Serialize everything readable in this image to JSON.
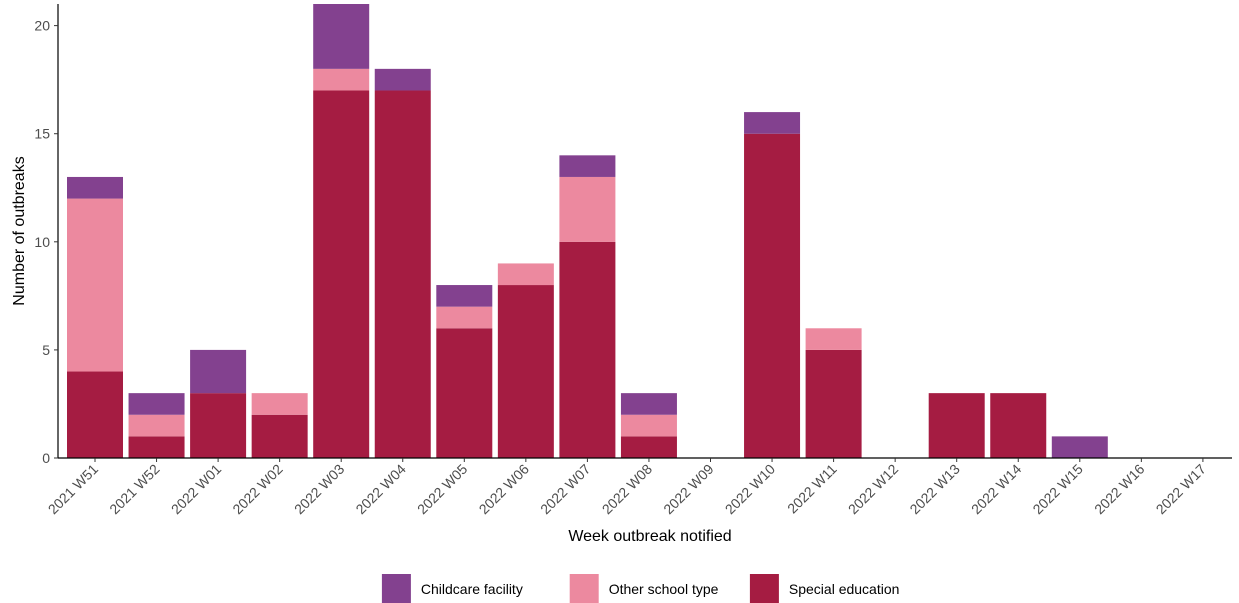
{
  "chart_data": {
    "type": "bar",
    "stacked": true,
    "xlabel": "Week outbreak notified",
    "ylabel": "Number of outbreaks",
    "ylim": [
      0,
      21
    ],
    "yticks": [
      0,
      5,
      10,
      15,
      20
    ],
    "grid": false,
    "legend_position": "bottom",
    "categories": [
      "2021 W51",
      "2021 W52",
      "2022 W01",
      "2022 W02",
      "2022 W03",
      "2022 W04",
      "2022 W05",
      "2022 W06",
      "2022 W07",
      "2022 W08",
      "2022 W09",
      "2022 W10",
      "2022 W11",
      "2022 W12",
      "2022 W13",
      "2022 W14",
      "2022 W15",
      "2022 W16",
      "2022 W17"
    ],
    "series": [
      {
        "name": "Special education",
        "color": "#A51C42",
        "values": [
          4,
          1,
          3,
          2,
          17,
          17,
          6,
          8,
          10,
          1,
          0,
          15,
          5,
          0,
          3,
          3,
          0,
          0,
          0
        ]
      },
      {
        "name": "Other school type",
        "color": "#EC899F",
        "values": [
          8,
          1,
          0,
          1,
          1,
          0,
          1,
          1,
          3,
          1,
          0,
          0,
          1,
          0,
          0,
          0,
          0,
          0,
          0
        ]
      },
      {
        "name": "Childcare facility",
        "color": "#83418F",
        "values": [
          1,
          1,
          2,
          0,
          3,
          1,
          1,
          0,
          1,
          1,
          0,
          1,
          0,
          0,
          0,
          0,
          1,
          0,
          0
        ]
      }
    ],
    "legend_order": [
      "Childcare facility",
      "Other school type",
      "Special education"
    ]
  }
}
